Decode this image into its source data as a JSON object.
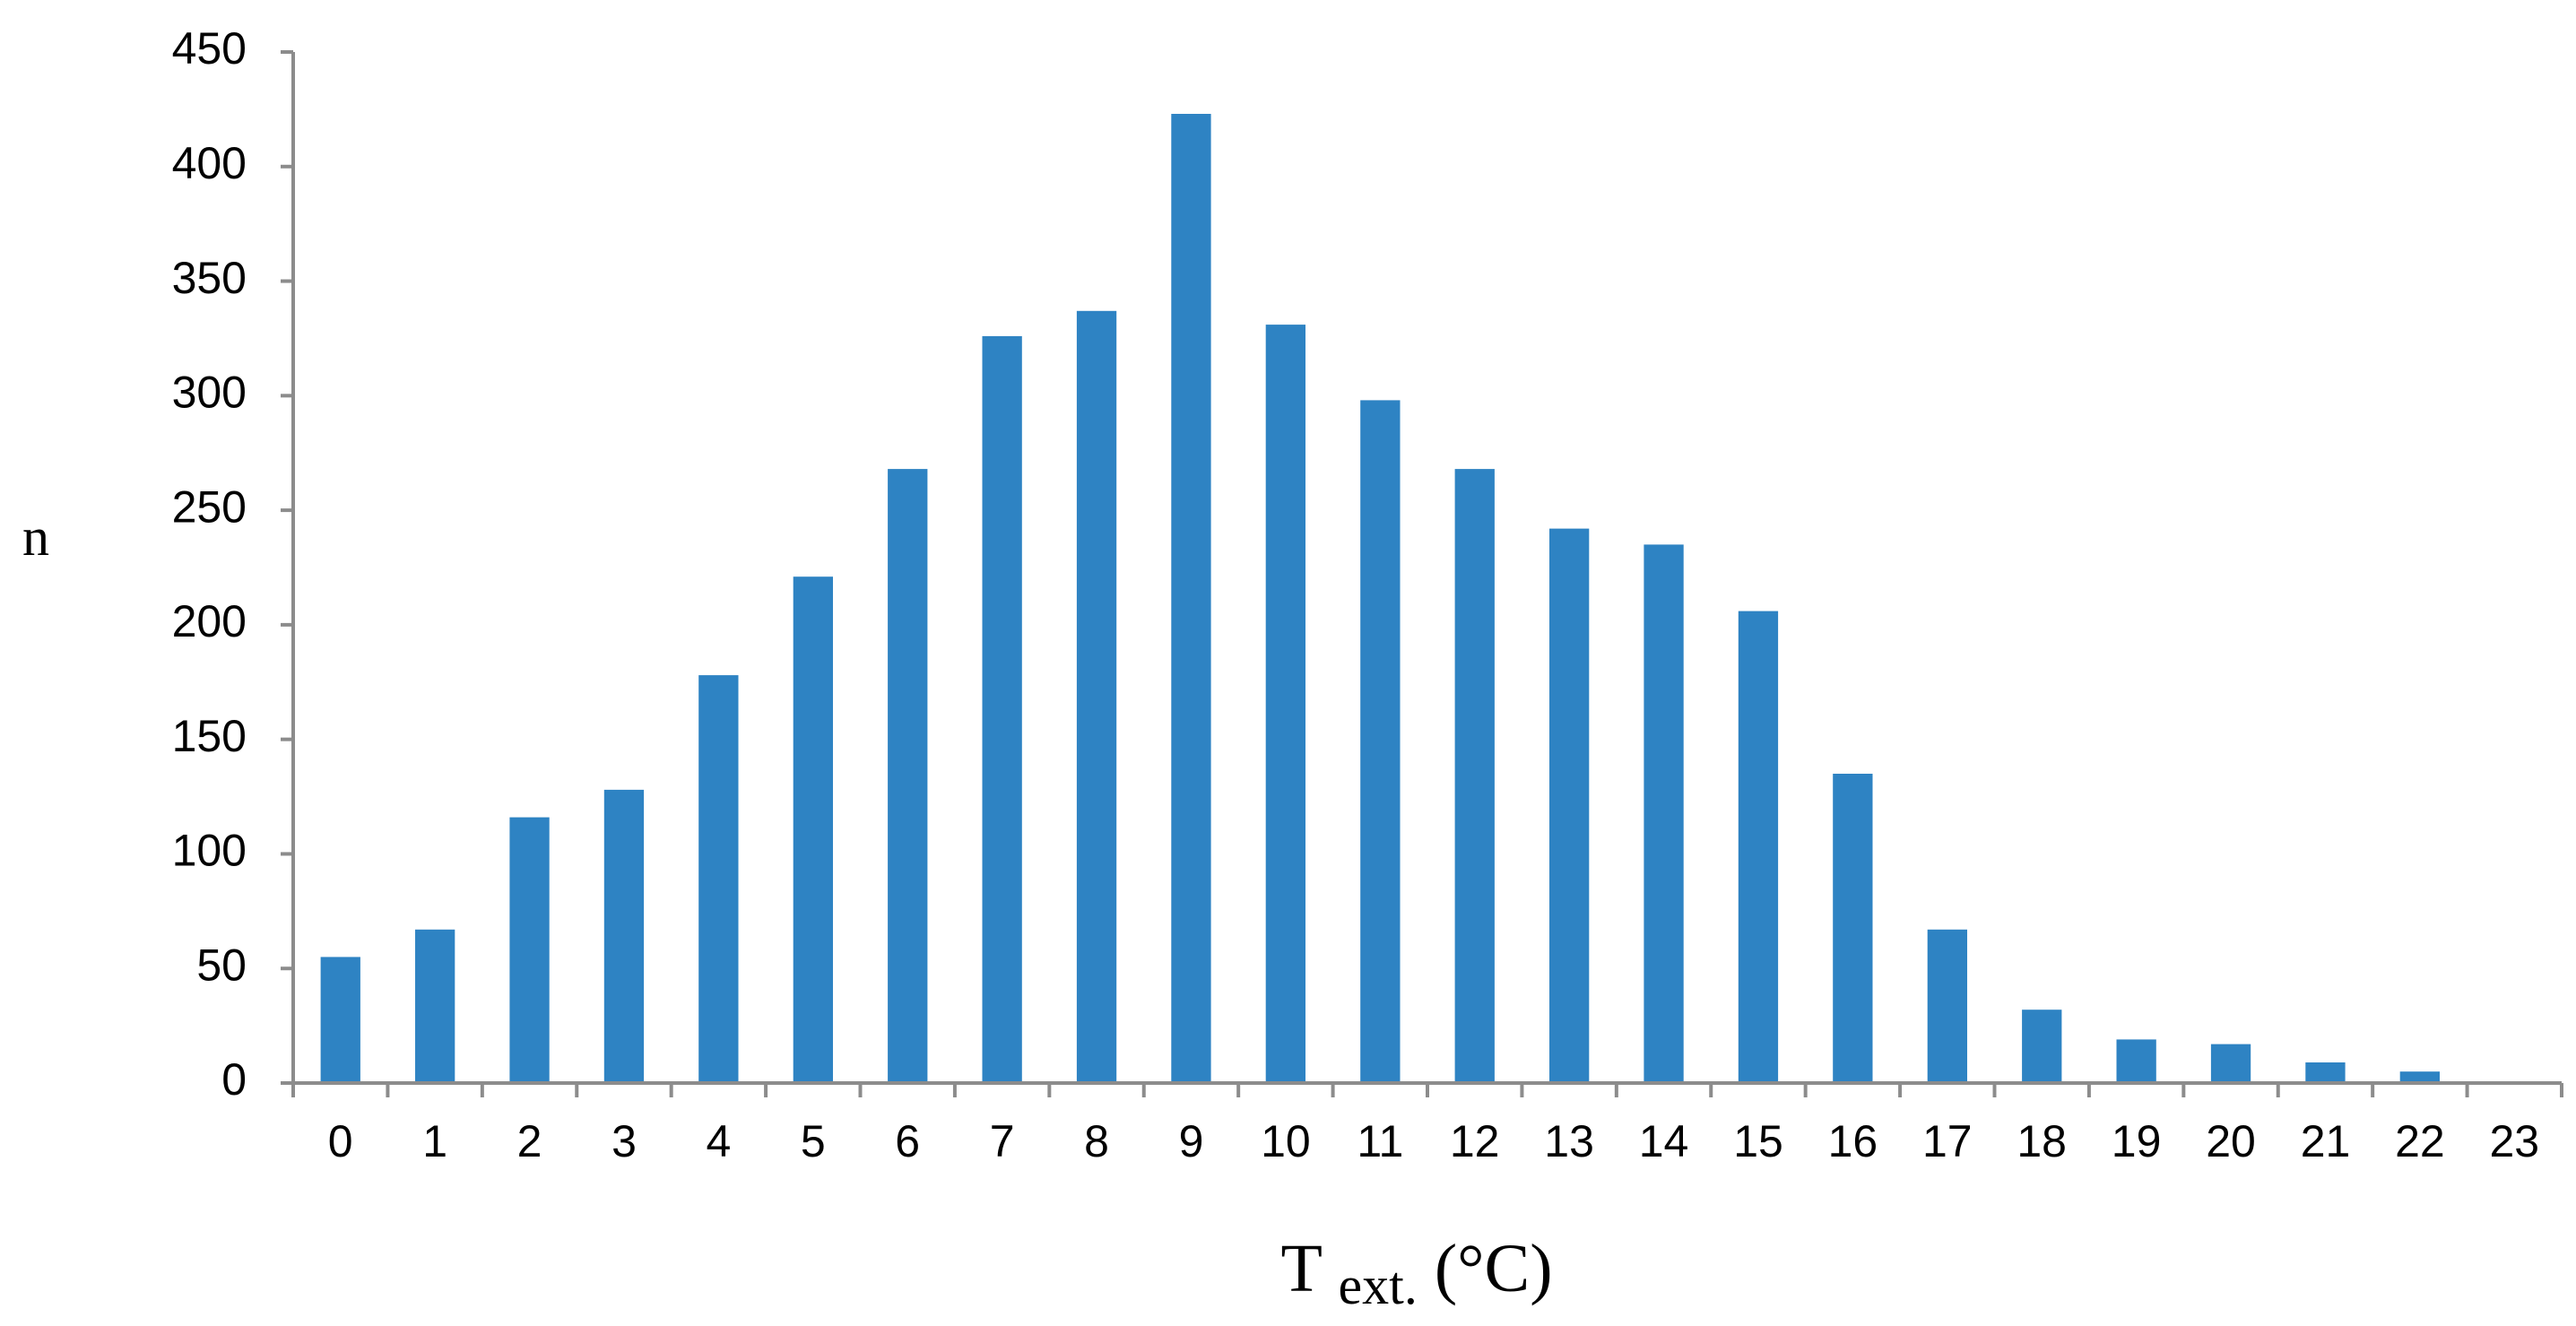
{
  "chart_data": {
    "type": "bar",
    "title": "",
    "xlabel": {
      "main": "T",
      "subscript": "ext.",
      "unit": " (°C)"
    },
    "ylabel": "n",
    "ylim": [
      0,
      450
    ],
    "yticks": [
      0,
      50,
      100,
      150,
      200,
      250,
      300,
      350,
      400,
      450
    ],
    "grid": false,
    "legend": "none",
    "bar_color": "#2e83c3",
    "categories": [
      "0",
      "1",
      "2",
      "3",
      "4",
      "5",
      "6",
      "7",
      "8",
      "9",
      "10",
      "11",
      "12",
      "13",
      "14",
      "15",
      "16",
      "17",
      "18",
      "19",
      "20",
      "21",
      "22",
      "23"
    ],
    "series": [
      {
        "values": [
          55,
          67,
          116,
          128,
          178,
          221,
          268,
          326,
          337,
          423,
          331,
          298,
          268,
          242,
          235,
          206,
          135,
          67,
          32,
          19,
          17,
          9,
          5,
          0
        ]
      }
    ]
  },
  "colors": {
    "axis": "#8c8c8c",
    "text": "#000000",
    "background": "#ffffff"
  }
}
